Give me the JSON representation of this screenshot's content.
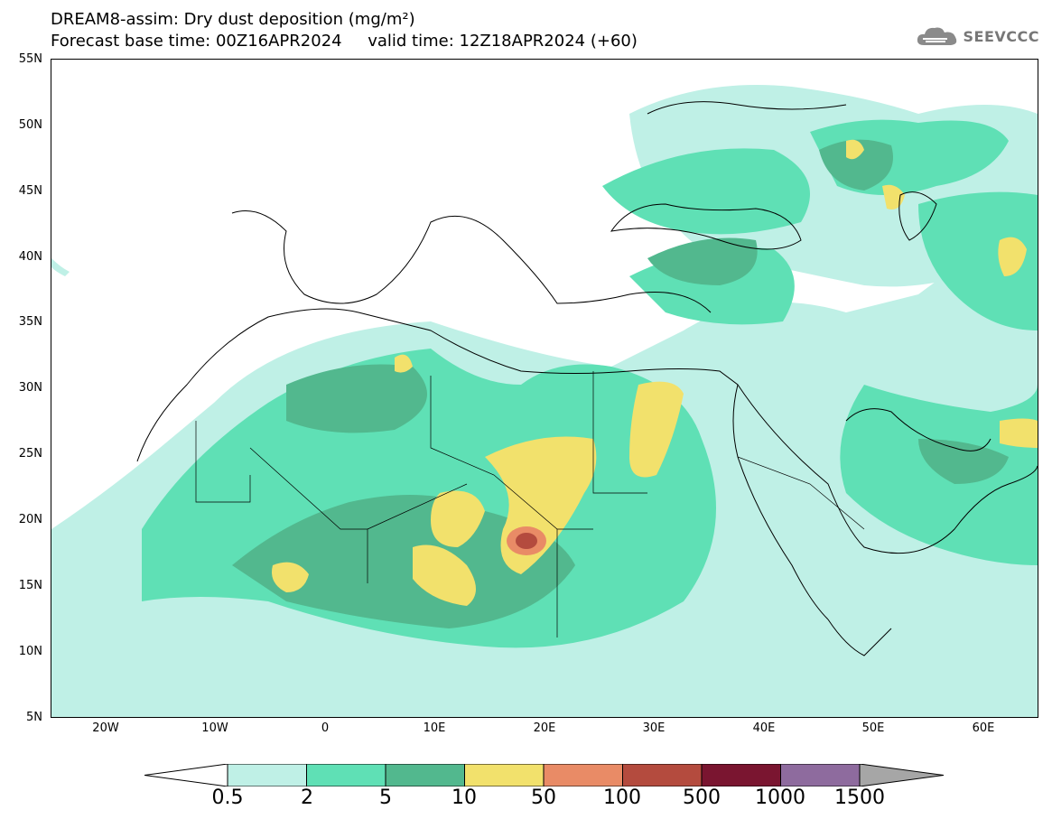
{
  "title": {
    "line1": "DREAM8-assim: Dry dust deposition (mg/m²)",
    "line2_left": "Forecast base time: 00Z16APR2024",
    "line2_right": "valid time: 12Z18APR2024 (+60)"
  },
  "logo": {
    "text": "SEEVCCC",
    "icon": "cloud-icon"
  },
  "axes": {
    "lat_labels": [
      "55N",
      "50N",
      "45N",
      "40N",
      "35N",
      "30N",
      "25N",
      "20N",
      "15N",
      "10N",
      "5N"
    ],
    "lon_labels": [
      "20W",
      "10W",
      "0",
      "10E",
      "20E",
      "30E",
      "40E",
      "50E",
      "60E"
    ]
  },
  "colorbar": {
    "labels": [
      "0.5",
      "2",
      "5",
      "10",
      "50",
      "100",
      "500",
      "1000",
      "1500"
    ],
    "colors": [
      "#bff0e6",
      "#5fe0b5",
      "#52b88e",
      "#f2e16c",
      "#e98b66",
      "#b44b3e",
      "#7a1530",
      "#8e6b9e"
    ],
    "under_color": "#ffffff",
    "over_color": "#a6a6a6"
  },
  "map": {
    "projection": "lat-lon",
    "lon_range": [
      -25,
      65
    ],
    "lat_range": [
      5,
      55
    ],
    "field": "dry dust deposition"
  }
}
